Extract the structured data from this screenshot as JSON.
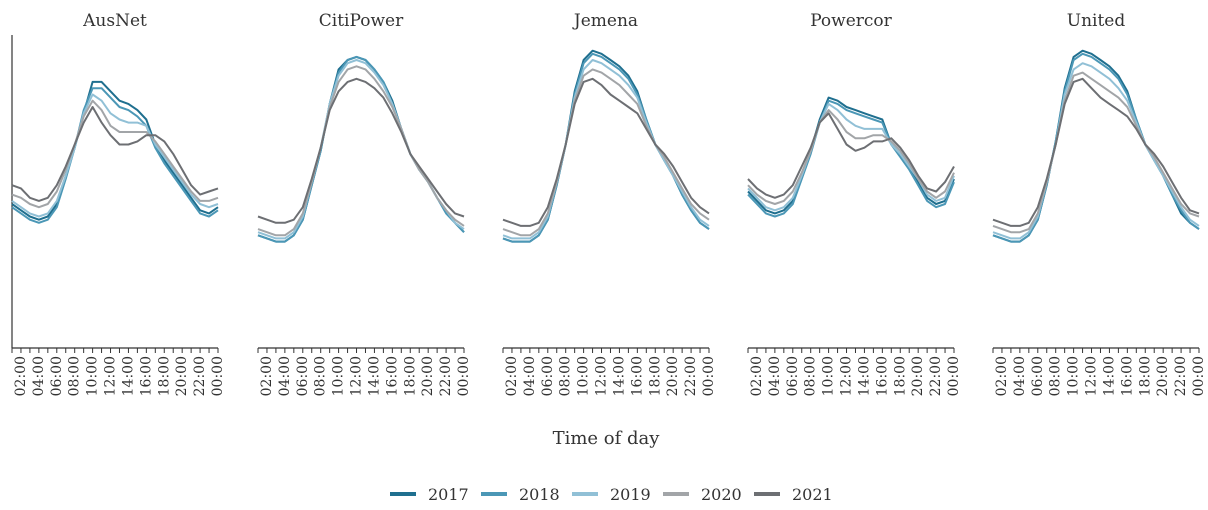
{
  "xlabel": "Time of day",
  "chart_data": [
    {
      "type": "line",
      "title": "AusNet",
      "categories": [
        null,
        "02:00",
        null,
        "04:00",
        null,
        "06:00",
        null,
        "08:00",
        null,
        "10:00",
        null,
        "12:00",
        null,
        "14:00",
        null,
        "16:00",
        null,
        "18:00",
        null,
        "20:00",
        null,
        "22:00",
        null,
        "00:00"
      ],
      "ylim": [
        0,
        100
      ],
      "series": [
        {
          "name": "2017",
          "color": "#1f6f8f",
          "values": [
            46,
            44,
            42,
            41,
            42,
            46,
            55,
            64,
            75,
            85,
            85,
            82,
            79,
            78,
            76,
            73,
            65,
            60,
            56,
            52,
            48,
            44,
            43,
            45
          ]
        },
        {
          "name": "2018",
          "color": "#4b97b6",
          "values": [
            45,
            43,
            41,
            40,
            41,
            45,
            54,
            64,
            76,
            83,
            83,
            80,
            77,
            76,
            74,
            71,
            64,
            59,
            55,
            51,
            47,
            43,
            42,
            44
          ]
        },
        {
          "name": "2019",
          "color": "#91c0d6",
          "values": [
            47,
            45,
            43,
            42,
            43,
            47,
            55,
            64,
            75,
            81,
            79,
            75,
            73,
            72,
            72,
            71,
            65,
            61,
            57,
            53,
            49,
            46,
            45,
            46
          ]
        },
        {
          "name": "2020",
          "color": "#a2a5a8",
          "values": [
            49,
            48,
            46,
            45,
            46,
            50,
            57,
            65,
            74,
            79,
            76,
            71,
            69,
            69,
            69,
            69,
            66,
            62,
            58,
            54,
            50,
            47,
            47,
            48
          ]
        },
        {
          "name": "2021",
          "color": "#6d6f73",
          "values": [
            52,
            51,
            48,
            47,
            48,
            52,
            58,
            65,
            72,
            77,
            72,
            68,
            65,
            65,
            66,
            68,
            68,
            66,
            62,
            57,
            52,
            49,
            50,
            51
          ]
        }
      ]
    },
    {
      "type": "line",
      "title": "CitiPower",
      "categories": [
        null,
        "02:00",
        null,
        "04:00",
        null,
        "06:00",
        null,
        "08:00",
        null,
        "10:00",
        null,
        "12:00",
        null,
        "14:00",
        null,
        "16:00",
        null,
        "18:00",
        null,
        "20:00",
        null,
        "22:00",
        null,
        "00:00"
      ],
      "ylim": [
        0,
        100
      ],
      "series": [
        {
          "name": "2017",
          "color": "#1f6f8f",
          "values": [
            36,
            35,
            34,
            34,
            36,
            41,
            52,
            63,
            78,
            89,
            92,
            93,
            92,
            89,
            85,
            79,
            70,
            62,
            57,
            53,
            48,
            44,
            40,
            37
          ]
        },
        {
          "name": "2018",
          "color": "#4b97b6",
          "values": [
            36,
            35,
            34,
            34,
            36,
            41,
            52,
            63,
            78,
            88,
            92,
            93,
            92,
            89,
            85,
            78,
            70,
            62,
            57,
            53,
            48,
            43,
            40,
            37
          ]
        },
        {
          "name": "2019",
          "color": "#91c0d6",
          "values": [
            37,
            36,
            35,
            35,
            37,
            42,
            53,
            64,
            78,
            87,
            91,
            92,
            91,
            88,
            84,
            78,
            70,
            62,
            57,
            53,
            48,
            44,
            40,
            38
          ]
        },
        {
          "name": "2020",
          "color": "#a2a5a8",
          "values": [
            38,
            37,
            36,
            36,
            38,
            43,
            53,
            64,
            77,
            85,
            89,
            90,
            89,
            86,
            82,
            77,
            70,
            62,
            57,
            53,
            48,
            44,
            41,
            39
          ]
        },
        {
          "name": "2021",
          "color": "#6d6f73",
          "values": [
            42,
            41,
            40,
            40,
            41,
            45,
            54,
            64,
            76,
            82,
            85,
            86,
            85,
            83,
            80,
            75,
            69,
            62,
            58,
            54,
            50,
            46,
            43,
            42
          ]
        }
      ]
    },
    {
      "type": "line",
      "title": "Jemena",
      "categories": [
        null,
        "02:00",
        null,
        "04:00",
        null,
        "06:00",
        null,
        "08:00",
        null,
        "10:00",
        null,
        "12:00",
        null,
        "14:00",
        null,
        "16:00",
        null,
        "18:00",
        null,
        "20:00",
        null,
        "22:00",
        null,
        "00:00"
      ],
      "ylim": [
        0,
        100
      ],
      "series": [
        {
          "name": "2017",
          "color": "#1f6f8f",
          "values": [
            35,
            34,
            34,
            34,
            36,
            41,
            52,
            65,
            82,
            92,
            95,
            94,
            92,
            90,
            87,
            82,
            73,
            65,
            60,
            55,
            49,
            44,
            40,
            38
          ]
        },
        {
          "name": "2018",
          "color": "#4b97b6",
          "values": [
            35,
            34,
            34,
            34,
            36,
            41,
            52,
            65,
            81,
            91,
            94,
            93,
            91,
            89,
            86,
            81,
            73,
            65,
            60,
            55,
            49,
            44,
            40,
            38
          ]
        },
        {
          "name": "2019",
          "color": "#91c0d6",
          "values": [
            36,
            35,
            35,
            35,
            37,
            42,
            53,
            65,
            80,
            89,
            92,
            91,
            89,
            87,
            84,
            80,
            72,
            65,
            60,
            55,
            50,
            45,
            41,
            39
          ]
        },
        {
          "name": "2020",
          "color": "#a2a5a8",
          "values": [
            38,
            37,
            36,
            36,
            38,
            43,
            53,
            65,
            79,
            87,
            89,
            88,
            86,
            84,
            81,
            78,
            71,
            65,
            61,
            56,
            51,
            46,
            43,
            41
          ]
        },
        {
          "name": "2021",
          "color": "#6d6f73",
          "values": [
            41,
            40,
            39,
            39,
            40,
            45,
            54,
            65,
            78,
            85,
            86,
            84,
            81,
            79,
            77,
            75,
            70,
            65,
            62,
            58,
            53,
            48,
            45,
            43
          ]
        }
      ]
    },
    {
      "type": "line",
      "title": "Powercor",
      "categories": [
        null,
        "02:00",
        null,
        "04:00",
        null,
        "06:00",
        null,
        "08:00",
        null,
        "10:00",
        null,
        "12:00",
        null,
        "14:00",
        null,
        "16:00",
        null,
        "18:00",
        null,
        "20:00",
        null,
        "22:00",
        null,
        "00:00"
      ],
      "ylim": [
        0,
        100
      ],
      "series": [
        {
          "name": "2017",
          "color": "#1f6f8f",
          "values": [
            50,
            47,
            44,
            43,
            44,
            47,
            55,
            63,
            73,
            80,
            79,
            77,
            76,
            75,
            74,
            73,
            65,
            62,
            58,
            53,
            48,
            46,
            47,
            54
          ]
        },
        {
          "name": "2018",
          "color": "#4b97b6",
          "values": [
            49,
            46,
            43,
            42,
            43,
            46,
            54,
            62,
            72,
            79,
            78,
            76,
            75,
            74,
            73,
            72,
            65,
            61,
            57,
            52,
            47,
            45,
            46,
            53
          ]
        },
        {
          "name": "2019",
          "color": "#91c0d6",
          "values": [
            51,
            48,
            45,
            44,
            45,
            48,
            55,
            63,
            72,
            78,
            76,
            73,
            71,
            70,
            70,
            70,
            65,
            62,
            58,
            54,
            49,
            47,
            48,
            55
          ]
        },
        {
          "name": "2020",
          "color": "#a2a5a8",
          "values": [
            52,
            49,
            47,
            46,
            47,
            50,
            56,
            63,
            72,
            76,
            73,
            69,
            67,
            67,
            68,
            68,
            66,
            63,
            59,
            54,
            50,
            48,
            50,
            56
          ]
        },
        {
          "name": "2021",
          "color": "#6d6f73",
          "values": [
            54,
            51,
            49,
            48,
            49,
            52,
            58,
            64,
            72,
            75,
            70,
            65,
            63,
            64,
            66,
            66,
            67,
            64,
            60,
            55,
            51,
            50,
            53,
            58
          ]
        }
      ]
    },
    {
      "type": "line",
      "title": "United",
      "categories": [
        null,
        "02:00",
        null,
        "04:00",
        null,
        "06:00",
        null,
        "08:00",
        null,
        "10:00",
        null,
        "12:00",
        null,
        "14:00",
        null,
        "16:00",
        null,
        "18:00",
        null,
        "20:00",
        null,
        "22:00",
        null,
        "00:00"
      ],
      "ylim": [
        0,
        100
      ],
      "series": [
        {
          "name": "2017",
          "color": "#1f6f8f",
          "values": [
            36,
            35,
            34,
            34,
            36,
            41,
            52,
            66,
            83,
            93,
            95,
            94,
            92,
            90,
            87,
            82,
            73,
            65,
            60,
            55,
            49,
            43,
            40,
            38
          ]
        },
        {
          "name": "2018",
          "color": "#4b97b6",
          "values": [
            36,
            35,
            34,
            34,
            36,
            41,
            52,
            66,
            82,
            92,
            94,
            93,
            91,
            89,
            86,
            81,
            73,
            65,
            60,
            55,
            49,
            44,
            40,
            38
          ]
        },
        {
          "name": "2019",
          "color": "#91c0d6",
          "values": [
            37,
            36,
            35,
            35,
            37,
            42,
            53,
            65,
            81,
            89,
            91,
            90,
            88,
            86,
            83,
            79,
            72,
            65,
            60,
            55,
            50,
            45,
            41,
            39
          ]
        },
        {
          "name": "2020",
          "color": "#a2a5a8",
          "values": [
            39,
            38,
            37,
            37,
            38,
            43,
            53,
            65,
            79,
            87,
            88,
            86,
            84,
            82,
            80,
            77,
            71,
            65,
            61,
            56,
            51,
            46,
            43,
            42
          ]
        },
        {
          "name": "2021",
          "color": "#6d6f73",
          "values": [
            41,
            40,
            39,
            39,
            40,
            45,
            54,
            65,
            78,
            85,
            86,
            83,
            80,
            78,
            76,
            74,
            70,
            65,
            62,
            58,
            53,
            48,
            44,
            43
          ]
        }
      ]
    }
  ]
}
